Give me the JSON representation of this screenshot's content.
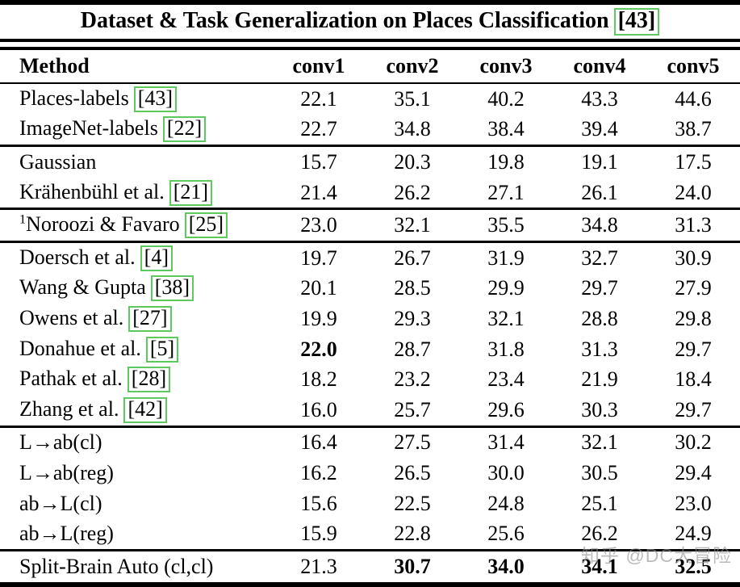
{
  "title": {
    "text": "Dataset & Task Generalization on Places Classification",
    "citation": "[43]"
  },
  "columns": [
    "Method",
    "conv1",
    "conv2",
    "conv3",
    "conv4",
    "conv5"
  ],
  "rows": [
    {
      "method": "Places-labels",
      "citation": "[43]",
      "values": [
        "22.1",
        "35.1",
        "40.2",
        "43.3",
        "44.6"
      ]
    },
    {
      "method": "ImageNet-labels",
      "citation": "[22]",
      "values": [
        "22.7",
        "34.8",
        "38.4",
        "39.4",
        "38.7"
      ],
      "separator_after": true
    },
    {
      "method": "Gaussian",
      "values": [
        "15.7",
        "20.3",
        "19.8",
        "19.1",
        "17.5"
      ]
    },
    {
      "method": "Krähenbühl et al.",
      "citation": "[21]",
      "values": [
        "21.4",
        "26.2",
        "27.1",
        "26.1",
        "24.0"
      ],
      "separator_after": true
    },
    {
      "method": "Noroozi & Favaro",
      "superscript": "1",
      "citation": "[25]",
      "values": [
        "23.0",
        "32.1",
        "35.5",
        "34.8",
        "31.3"
      ],
      "separator_after": true
    },
    {
      "method": "Doersch et al.",
      "citation": "[4]",
      "values": [
        "19.7",
        "26.7",
        "31.9",
        "32.7",
        "30.9"
      ]
    },
    {
      "method": "Wang & Gupta",
      "citation": "[38]",
      "values": [
        "20.1",
        "28.5",
        "29.9",
        "29.7",
        "27.9"
      ]
    },
    {
      "method": "Owens et al.",
      "citation": "[27]",
      "values": [
        "19.9",
        "29.3",
        "32.1",
        "28.8",
        "29.8"
      ]
    },
    {
      "method": "Donahue et al.",
      "citation": "[5]",
      "values": [
        "22.0",
        "28.7",
        "31.8",
        "31.3",
        "29.7"
      ],
      "bold": [
        true,
        false,
        false,
        false,
        false
      ]
    },
    {
      "method": "Pathak et al.",
      "citation": "[28]",
      "values": [
        "18.2",
        "23.2",
        "23.4",
        "21.9",
        "18.4"
      ]
    },
    {
      "method": "Zhang et al.",
      "citation": "[42]",
      "values": [
        "16.0",
        "25.7",
        "29.6",
        "30.3",
        "29.7"
      ],
      "separator_after": true
    },
    {
      "method": "L→ab(cl)",
      "values": [
        "16.4",
        "27.5",
        "31.4",
        "32.1",
        "30.2"
      ]
    },
    {
      "method": "L→ab(reg)",
      "values": [
        "16.2",
        "26.5",
        "30.0",
        "30.5",
        "29.4"
      ]
    },
    {
      "method": "ab→L(cl)",
      "values": [
        "15.6",
        "22.5",
        "24.8",
        "25.1",
        "23.0"
      ]
    },
    {
      "method": "ab→L(reg)",
      "values": [
        "15.9",
        "22.8",
        "25.6",
        "26.2",
        "24.9"
      ],
      "separator_after": true
    },
    {
      "method": "Split-Brain Auto (cl,cl)",
      "values": [
        "21.3",
        "30.7",
        "34.0",
        "34.1",
        "32.5"
      ],
      "bold": [
        false,
        true,
        true,
        true,
        true
      ]
    }
  ],
  "watermark": {
    "text": "知乎 @DC大冒险"
  },
  "colors": {
    "citation_box_border": "#5ec95e",
    "rule": "#000000",
    "watermark": "#919191"
  }
}
